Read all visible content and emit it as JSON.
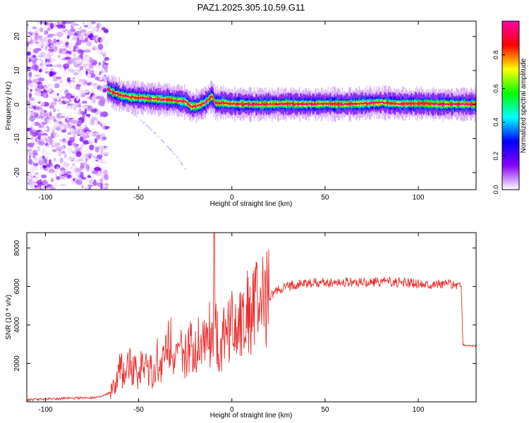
{
  "figure_title": "PAZ1.2025.305.10.59.G11",
  "chart_data": [
    {
      "type": "heatmap",
      "xlabel": "Height of straight line (km)",
      "ylabel": "Frequency (Hz)",
      "xlim": [
        -110,
        131
      ],
      "ylim": [
        -25,
        24.5
      ],
      "xticks": [
        -100,
        -50,
        0,
        50,
        100
      ],
      "yticks": [
        -20,
        -10,
        0,
        10,
        20
      ],
      "colorbar": {
        "label": "Normalized spectral amplitude",
        "range": [
          0,
          1
        ],
        "ticks": [
          "0.0",
          "0.2",
          "0.4",
          "0.6",
          "0.8"
        ],
        "colormap": [
          "#ffffff",
          "#8800ff",
          "#0000ff",
          "#00ffff",
          "#00ff00",
          "#ffff00",
          "#ff0000",
          "#ff00aa"
        ]
      },
      "noise_region_km": [
        -110,
        -67
      ],
      "ridge": {
        "x": [
          -67,
          -64,
          -60,
          -55,
          -50,
          -45,
          -40,
          -35,
          -30,
          -25,
          -22,
          -18,
          -14,
          -11,
          -9,
          -5,
          0,
          10,
          20,
          30,
          40,
          50,
          60,
          70,
          80,
          90,
          100,
          110,
          120,
          131
        ],
        "y": [
          4.5,
          3.5,
          2.8,
          2.2,
          2.0,
          1.8,
          1.6,
          1.4,
          1.2,
          0.8,
          -0.6,
          -0.3,
          0.8,
          2.5,
          0.4,
          0.5,
          0.2,
          0.1,
          0.1,
          0.2,
          0.1,
          0.2,
          0.1,
          0.3,
          0.6,
          0.2,
          0.3,
          0.1,
          0.1,
          0.1
        ]
      },
      "secondary_branch": {
        "x": [
          -60,
          -50,
          -40,
          -30,
          -25
        ],
        "y": [
          0,
          -4,
          -9,
          -15,
          -19
        ]
      }
    },
    {
      "type": "line",
      "xlabel": "Height of straight line (km)",
      "ylabel": "SNR (10 * v/v)",
      "xlim": [
        -110,
        131
      ],
      "ylim": [
        0,
        8800
      ],
      "xticks": [
        -100,
        -50,
        0,
        50,
        100
      ],
      "yticks": [
        2000,
        4000,
        6000,
        8000
      ],
      "color": "#e83030",
      "x": [
        -110,
        -100,
        -90,
        -80,
        -70,
        -65,
        -62,
        -60,
        -58,
        -55,
        -52,
        -50,
        -48,
        -45,
        -42,
        -40,
        -38,
        -35,
        -33,
        -30,
        -28,
        -25,
        -22,
        -20,
        -18,
        -15,
        -12,
        -10,
        -9.5,
        -9,
        -8,
        -7,
        -5,
        -3,
        0,
        5,
        10,
        15,
        20,
        25,
        30,
        35,
        40,
        45,
        50,
        60,
        70,
        80,
        90,
        100,
        110,
        120,
        123,
        124,
        125,
        131
      ],
      "y": [
        100,
        150,
        180,
        200,
        250,
        500,
        900,
        1800,
        1400,
        2000,
        1600,
        1200,
        2300,
        1800,
        1400,
        2200,
        1700,
        2800,
        3600,
        2000,
        2600,
        2300,
        2800,
        2600,
        3200,
        3400,
        3600,
        3700,
        8800,
        3500,
        3800,
        1200,
        3500,
        3700,
        3900,
        4400,
        4800,
        5200,
        5500,
        5800,
        6000,
        6100,
        6150,
        6200,
        6200,
        6250,
        6200,
        6250,
        6200,
        6150,
        6150,
        6100,
        6050,
        2950,
        2950,
        2900
      ]
    }
  ]
}
